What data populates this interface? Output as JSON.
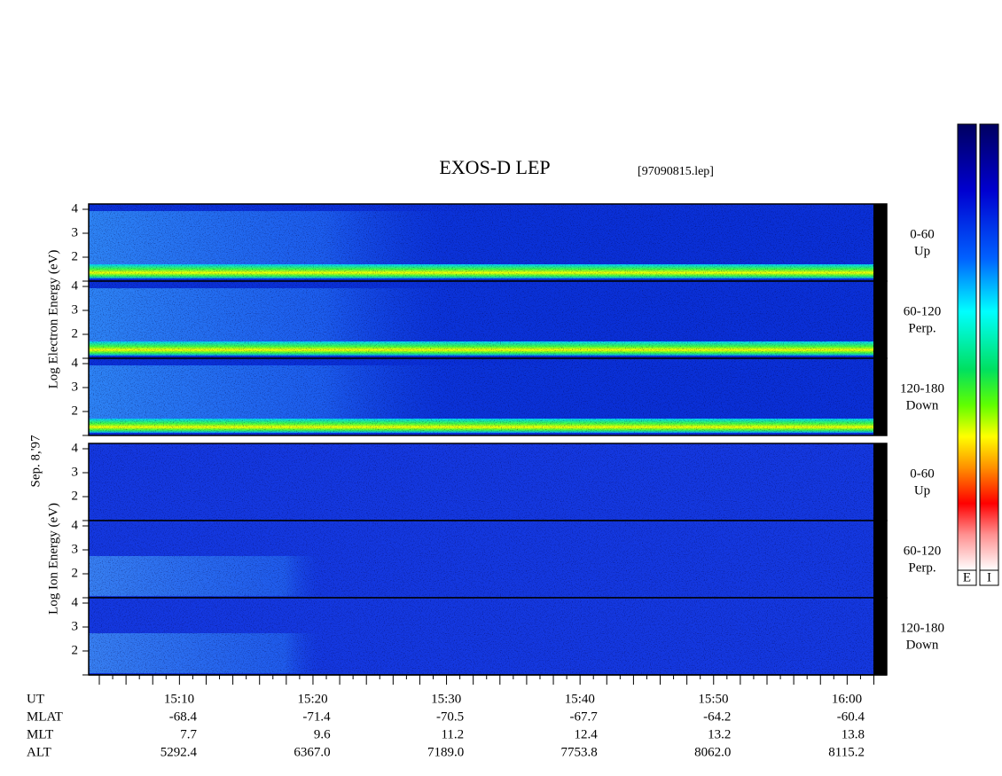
{
  "title": "EXOS-D LEP",
  "file": "[97090815.lep]",
  "date": "Sep. 8,'97",
  "electron_axis_label": "Log  Electron  Energy (eV)",
  "ion_axis_label": "Log  Ion  Energy (eV)",
  "energy_ticks": [
    "4",
    "3",
    "2"
  ],
  "electron_panels": [
    {
      "angle": "0-60",
      "direction": "Up"
    },
    {
      "angle": "60-120",
      "direction": "Perp."
    },
    {
      "angle": "120-180",
      "direction": "Down"
    }
  ],
  "ion_panels": [
    {
      "angle": "0-60",
      "direction": "Up"
    },
    {
      "angle": "60-120",
      "direction": "Perp."
    },
    {
      "angle": "120-180",
      "direction": "Down"
    }
  ],
  "ephemeris": {
    "labels": [
      "UT",
      "MLAT",
      "MLT",
      "ALT"
    ],
    "rows": [
      [
        "15:10",
        "15:20",
        "15:30",
        "15:40",
        "15:50",
        "16:00"
      ],
      [
        "-68.4",
        "-71.4",
        "-70.5",
        "-67.7",
        "-64.2",
        "-60.4"
      ],
      [
        "7.7",
        "9.6",
        "11.2",
        "12.4",
        "13.2",
        "13.8"
      ],
      [
        "5292.4",
        "6367.0",
        "7189.0",
        "7753.8",
        "8062.0",
        "8115.2"
      ]
    ]
  },
  "colorbar_labels": [
    "E",
    "I"
  ]
}
